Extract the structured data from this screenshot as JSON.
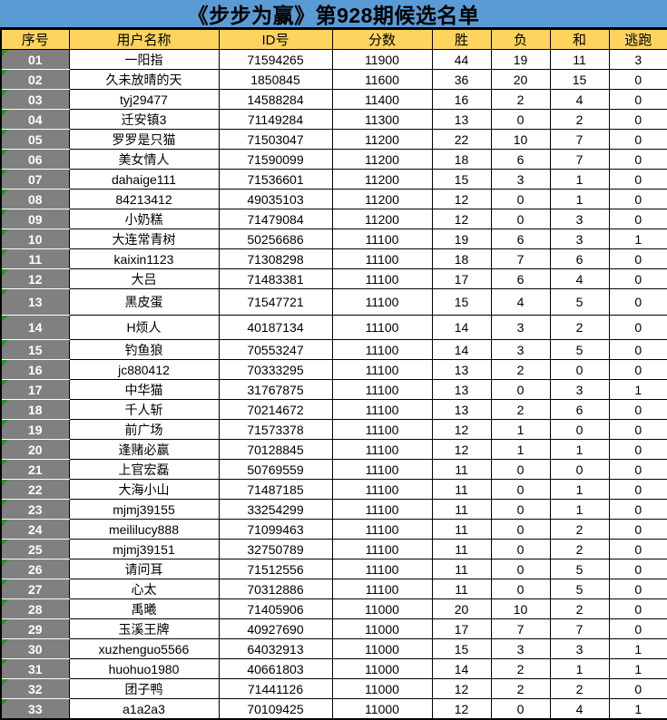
{
  "title": "《步步为赢》第928期候选名单",
  "colors": {
    "title_bg": "#5B9BD5",
    "header_bg": "#FFD45E",
    "index_bg": "#808080",
    "indicator_green": "#1E9A1E"
  },
  "table": {
    "headers": [
      "序号",
      "用户名称",
      "ID号",
      "分数",
      "胜",
      "负",
      "和",
      "逃跑"
    ],
    "rows": [
      [
        "01",
        "一阳指",
        "71594265",
        "11900",
        "44",
        "19",
        "11",
        "3"
      ],
      [
        "02",
        "久未放晴的天",
        "1850845",
        "11600",
        "36",
        "20",
        "15",
        "0"
      ],
      [
        "03",
        "tyj29477",
        "14588284",
        "11400",
        "16",
        "2",
        "4",
        "0"
      ],
      [
        "04",
        "迁安镇3",
        "71149284",
        "11300",
        "13",
        "0",
        "2",
        "0"
      ],
      [
        "05",
        "罗罗是只猫",
        "71503047",
        "11200",
        "22",
        "10",
        "7",
        "0"
      ],
      [
        "06",
        "美女情人",
        "71590099",
        "11200",
        "18",
        "6",
        "7",
        "0"
      ],
      [
        "07",
        "dahaige111",
        "71536601",
        "11200",
        "15",
        "3",
        "1",
        "0"
      ],
      [
        "08",
        "84213412",
        "49035103",
        "11200",
        "12",
        "0",
        "1",
        "0"
      ],
      [
        "09",
        "小奶糕",
        "71479084",
        "11200",
        "12",
        "0",
        "3",
        "0"
      ],
      [
        "10",
        "大连常青树",
        "50256686",
        "11100",
        "19",
        "6",
        "3",
        "1"
      ],
      [
        "11",
        "kaixin1123",
        "71308298",
        "11100",
        "18",
        "7",
        "6",
        "0"
      ],
      [
        "12",
        "大吕",
        "71483381",
        "11100",
        "17",
        "6",
        "4",
        "0"
      ],
      [
        "13",
        "黑皮蛋",
        "71547721",
        "11100",
        "15",
        "4",
        "5",
        "0"
      ],
      [
        "14",
        "H烦人",
        "40187134",
        "11100",
        "14",
        "3",
        "2",
        "0"
      ],
      [
        "15",
        "钓鱼狼",
        "70553247",
        "11100",
        "14",
        "3",
        "5",
        "0"
      ],
      [
        "16",
        "jc880412",
        "70333295",
        "11100",
        "13",
        "2",
        "0",
        "0"
      ],
      [
        "17",
        "中华猫",
        "31767875",
        "11100",
        "13",
        "0",
        "3",
        "1"
      ],
      [
        "18",
        "千人斩",
        "70214672",
        "11100",
        "13",
        "2",
        "6",
        "0"
      ],
      [
        "19",
        "前广场",
        "71573378",
        "11100",
        "12",
        "1",
        "0",
        "0"
      ],
      [
        "20",
        "逢赌必赢",
        "70128845",
        "11100",
        "12",
        "1",
        "1",
        "0"
      ],
      [
        "21",
        "上官宏磊",
        "50769559",
        "11100",
        "11",
        "0",
        "0",
        "0"
      ],
      [
        "22",
        "大海小山",
        "71487185",
        "11100",
        "11",
        "0",
        "1",
        "0"
      ],
      [
        "23",
        "mjmj39155",
        "33254299",
        "11100",
        "11",
        "0",
        "1",
        "0"
      ],
      [
        "24",
        "meililucy888",
        "71099463",
        "11100",
        "11",
        "0",
        "2",
        "0"
      ],
      [
        "25",
        "mjmj39151",
        "32750789",
        "11100",
        "11",
        "0",
        "2",
        "0"
      ],
      [
        "26",
        "请问耳",
        "71512556",
        "11100",
        "11",
        "0",
        "5",
        "0"
      ],
      [
        "27",
        "心太",
        "70312886",
        "11100",
        "11",
        "0",
        "5",
        "0"
      ],
      [
        "28",
        "禹曦",
        "71405906",
        "11000",
        "20",
        "10",
        "2",
        "0"
      ],
      [
        "29",
        "玉溪王牌",
        "40927690",
        "11000",
        "17",
        "7",
        "7",
        "0"
      ],
      [
        "30",
        "xuzhenguo5566",
        "64032913",
        "11000",
        "15",
        "3",
        "3",
        "1"
      ],
      [
        "31",
        "huohuo1980",
        "40661803",
        "11000",
        "14",
        "2",
        "1",
        "1"
      ],
      [
        "32",
        "团子鸭",
        "71441126",
        "11000",
        "12",
        "2",
        "2",
        "0"
      ],
      [
        "33",
        "a1a2a3",
        "70109425",
        "11000",
        "12",
        "0",
        "4",
        "1"
      ]
    ]
  }
}
